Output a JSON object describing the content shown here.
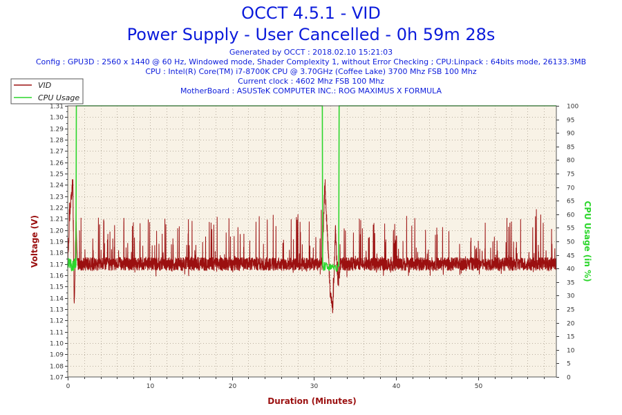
{
  "header": {
    "title": "OCCT 4.5.1 - VID",
    "subtitle": "Power Supply - User Cancelled - 0h 59m 28s",
    "info_lines": [
      "Generated by OCCT : 2018.02.10 15:21:03",
      "Config : GPU3D : 2560 x 1440 @ 60 Hz, Windowed mode, Shader Complexity 1, without Error Checking ; CPU:Linpack : 64bits mode, 26133.3MB",
      "CPU : Intel(R) Core(TM) i7-8700K CPU @ 3.70GHz (Coffee Lake) 3700 Mhz FSB 100 Mhz",
      "Current clock : 4602 Mhz FSB 100 Mhz",
      "MotherBoard : ASUSTeK COMPUTER INC.: ROG MAXIMUS X FORMULA"
    ]
  },
  "colors": {
    "title": "#0b1bdb",
    "vid": "#9b1010",
    "cpu": "#2cd62c",
    "plot_bg": "#f8f2e6",
    "grid": "#b8ae9e"
  },
  "chart_data": {
    "type": "line",
    "xlabel": "Duration (Minutes)",
    "ylabel": "Voltage (V)",
    "y2label": "CPU Usage (in %)",
    "xlim": [
      0,
      59.5
    ],
    "ylim": [
      1.07,
      1.31
    ],
    "y2lim": [
      0,
      100
    ],
    "x_ticks": [
      0,
      10,
      20,
      30,
      40,
      50
    ],
    "y_ticks": [
      1.07,
      1.08,
      1.09,
      1.1,
      1.11,
      1.12,
      1.13,
      1.14,
      1.15,
      1.16,
      1.17,
      1.18,
      1.19,
      1.2,
      1.21,
      1.22,
      1.23,
      1.24,
      1.25,
      1.26,
      1.27,
      1.28,
      1.29,
      1.3,
      1.31
    ],
    "y_tick_labels": [
      "1.07",
      "1.08",
      "1.09",
      "1.10",
      "1.11",
      "1.12",
      "1.13",
      "1.14",
      "1.15",
      "1.16",
      "1.17",
      "1.18",
      "1.19",
      "1.20",
      "1.21",
      "1.22",
      "1.23",
      "1.24",
      "1.25",
      "1.26",
      "1.27",
      "1.28",
      "1.29",
      "1.30",
      "1.31"
    ],
    "y2_ticks": [
      0,
      5,
      10,
      15,
      20,
      25,
      30,
      35,
      40,
      45,
      50,
      55,
      60,
      65,
      70,
      75,
      80,
      85,
      90,
      95,
      100
    ],
    "grid": true,
    "legend": "top-left",
    "series": [
      {
        "name": "VID",
        "axis": "left",
        "baseline": 1.17,
        "min": 1.125,
        "max": 1.245,
        "x": [
          0,
          0.3,
          0.6,
          0.8,
          1.0,
          1.2,
          1.5,
          3,
          6,
          9,
          12,
          15,
          18,
          21,
          24,
          27,
          30,
          31.0,
          31.3,
          31.6,
          32.0,
          32.3,
          32.6,
          32.9,
          33.2,
          36,
          39,
          42,
          45,
          48,
          51,
          54,
          57,
          59.5
        ],
        "values": [
          1.17,
          1.22,
          1.24,
          1.13,
          1.21,
          1.17,
          1.17,
          1.17,
          1.17,
          1.17,
          1.17,
          1.17,
          1.17,
          1.17,
          1.17,
          1.17,
          1.17,
          1.17,
          1.24,
          1.2,
          1.14,
          1.13,
          1.2,
          1.15,
          1.17,
          1.17,
          1.17,
          1.17,
          1.17,
          1.17,
          1.17,
          1.17,
          1.17,
          1.17
        ]
      },
      {
        "name": "CPU Usage",
        "axis": "right",
        "x": [
          0,
          0.4,
          0.8,
          1.0,
          1.05,
          31.0,
          31.05,
          33.0,
          33.05,
          59.5
        ],
        "values": [
          42,
          41,
          42,
          41,
          100,
          100,
          41,
          41,
          100,
          100
        ]
      }
    ]
  }
}
